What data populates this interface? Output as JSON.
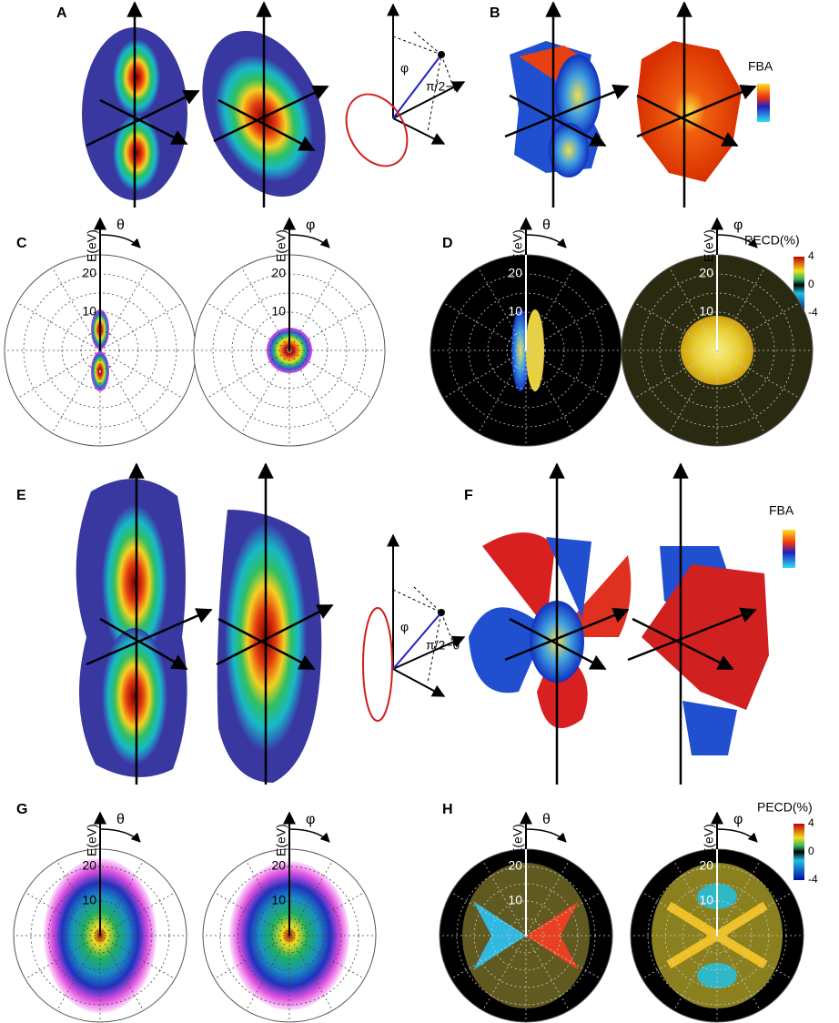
{
  "panels": [
    "A",
    "B",
    "C",
    "D",
    "E",
    "F",
    "G",
    "H"
  ],
  "polar": {
    "axis_label": "E(eV)",
    "ticks": [
      "20",
      "10"
    ],
    "angles": [
      "θ",
      "φ"
    ]
  },
  "colorbars": {
    "fba_title": "FBA",
    "pecd_title": "PECD(%)",
    "pecd_ticks": [
      "4",
      "0",
      "-4"
    ]
  },
  "diagram": {
    "phi": "φ",
    "angle": "π/2−θ"
  }
}
